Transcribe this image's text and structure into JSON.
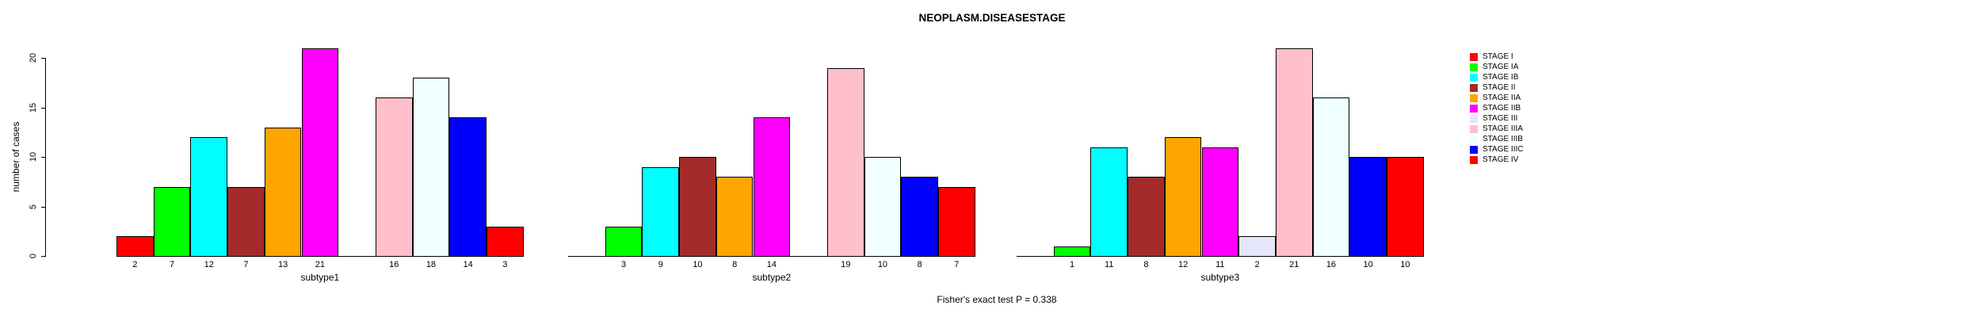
{
  "title": "NEOPLASM.DISEASESTAGE",
  "footer_annotation": "Fisher's exact test P = 0.338",
  "chart_data": {
    "type": "bar",
    "title": "NEOPLASM.DISEASESTAGE",
    "xlabel": "",
    "ylabel": "number of cases",
    "ylim": [
      0,
      21
    ],
    "yticks": [
      0,
      5,
      10,
      15,
      20
    ],
    "grid": false,
    "legend_position": "right",
    "bar_border_color": "#000000",
    "series": [
      {
        "name": "STAGE I",
        "color": "#FF0000"
      },
      {
        "name": "STAGE IA",
        "color": "#00FF00"
      },
      {
        "name": "STAGE IB",
        "color": "#00FFFF"
      },
      {
        "name": "STAGE II",
        "color": "#A52A2A"
      },
      {
        "name": "STAGE IIA",
        "color": "#FFA500"
      },
      {
        "name": "STAGE IIB",
        "color": "#FF00FF"
      },
      {
        "name": "STAGE III",
        "color": "#E6E6FA"
      },
      {
        "name": "STAGE IIIA",
        "color": "#FFC0CB"
      },
      {
        "name": "STAGE IIIB",
        "color": "#F0FFFF"
      },
      {
        "name": "STAGE IIIC",
        "color": "#0000FF"
      },
      {
        "name": "STAGE IV",
        "color": "#FF0000"
      }
    ],
    "categories": [
      "subtype1",
      "subtype2",
      "subtype3"
    ],
    "groups": [
      {
        "label": "subtype1",
        "values": [
          2,
          7,
          12,
          7,
          13,
          21,
          0,
          16,
          18,
          14,
          3
        ]
      },
      {
        "label": "subtype2",
        "values": [
          0,
          3,
          9,
          10,
          8,
          14,
          0,
          19,
          10,
          8,
          7
        ]
      },
      {
        "label": "subtype3",
        "values": [
          0,
          1,
          11,
          8,
          12,
          11,
          2,
          21,
          16,
          10,
          10
        ]
      }
    ],
    "zero_bars_unlabeled": true,
    "annotation": "Fisher's exact test P = 0.338"
  }
}
